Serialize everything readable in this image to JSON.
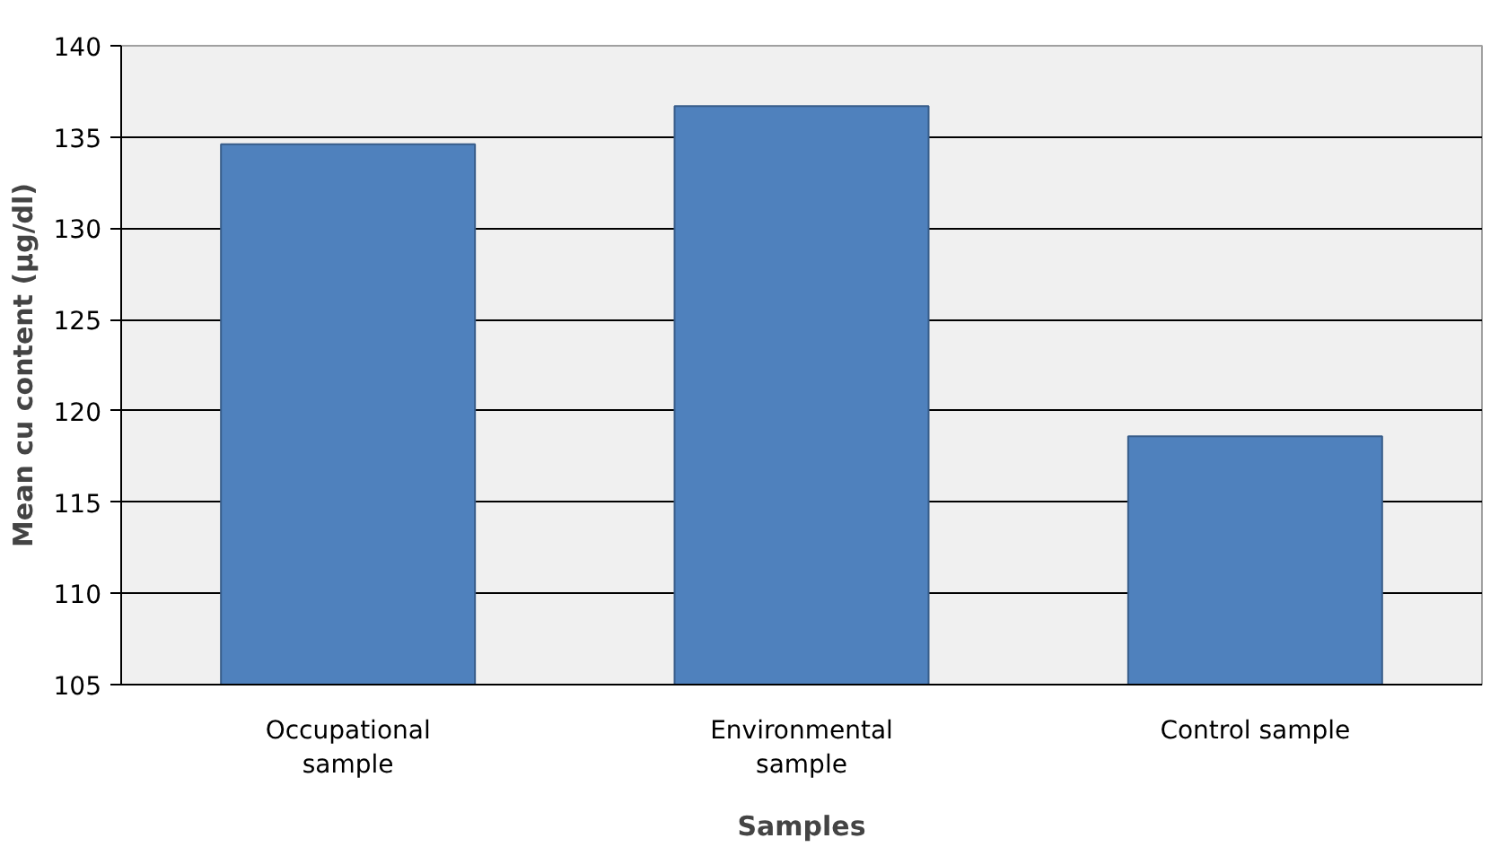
{
  "chart_data": {
    "type": "bar",
    "xlabel": "Samples",
    "ylabel": "Mean cu content (µg/dl)",
    "categories": [
      "Occupational sample",
      "Environmental sample",
      "Control sample"
    ],
    "values": [
      134.6,
      136.7,
      118.6
    ],
    "color": "#4f81bd",
    "ylim": [
      105,
      140
    ],
    "yticks": [
      105,
      110,
      115,
      120,
      125,
      130,
      135,
      140
    ],
    "grid": "y"
  }
}
